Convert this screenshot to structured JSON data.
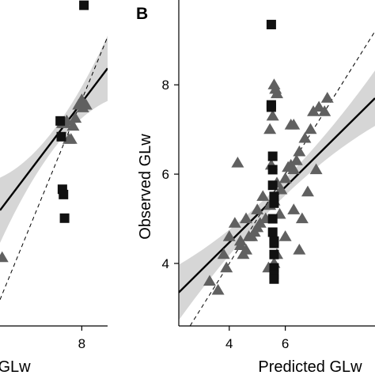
{
  "chart_data": [
    {
      "type": "scatter",
      "panel_label": "",
      "title": "",
      "xlabel": "GLw",
      "ylabel": "",
      "xlim": [
        4.2,
        9.2
      ],
      "ylim": [
        3.7,
        9.9
      ],
      "x_ticks": [
        8
      ],
      "y_ticks": [],
      "series": [
        {
          "marker": "triangle",
          "color": "#606060",
          "points": [
            [
              4.3,
              5.0
            ],
            [
              7.1,
              7.55
            ],
            [
              7.2,
              7.55
            ],
            [
              7.3,
              7.6
            ],
            [
              7.4,
              7.25
            ],
            [
              7.5,
              7.25
            ],
            [
              7.6,
              7.5
            ],
            [
              7.7,
              7.65
            ],
            [
              7.85,
              7.9
            ],
            [
              8.0,
              8.0
            ],
            [
              8.05,
              7.85
            ],
            [
              8.2,
              7.9
            ]
          ]
        },
        {
          "marker": "square",
          "color": "#111111",
          "points": [
            [
              7.0,
              7.6
            ],
            [
              7.05,
              7.3
            ],
            [
              7.1,
              6.3
            ],
            [
              7.15,
              6.2
            ],
            [
              7.2,
              5.75
            ],
            [
              8.1,
              9.8
            ]
          ]
        }
      ],
      "regression": {
        "x": [
          4.2,
          9.2
        ],
        "y": [
          5.9,
          8.6
        ]
      },
      "identity_line": {
        "x": [
          4.2,
          9.2
        ],
        "y": [
          4.2,
          9.2
        ]
      }
    },
    {
      "type": "scatter",
      "panel_label": "B",
      "title": "",
      "xlabel": "Predicted GLw",
      "ylabel": "Observed GLw",
      "xlim": [
        2.2,
        9.2
      ],
      "ylim": [
        2.6,
        9.9
      ],
      "x_ticks": [
        4,
        6
      ],
      "y_ticks": [
        4,
        6,
        8
      ],
      "series": [
        {
          "marker": "triangle",
          "color": "#606060",
          "points": [
            [
              3.3,
              3.6
            ],
            [
              3.6,
              3.4
            ],
            [
              3.8,
              4.2
            ],
            [
              3.9,
              3.9
            ],
            [
              4.0,
              4.6
            ],
            [
              4.2,
              4.9
            ],
            [
              4.3,
              6.25
            ],
            [
              4.4,
              4.4
            ],
            [
              4.5,
              4.2
            ],
            [
              4.6,
              4.3
            ],
            [
              4.7,
              4.6
            ],
            [
              4.9,
              4.7
            ],
            [
              5.0,
              4.8
            ],
            [
              5.1,
              4.9
            ],
            [
              5.3,
              5.0
            ],
            [
              5.45,
              5.3
            ],
            [
              5.6,
              5.4
            ],
            [
              5.7,
              5.8
            ],
            [
              5.85,
              5.65
            ],
            [
              6.0,
              5.9
            ],
            [
              6.1,
              6.15
            ],
            [
              6.2,
              6.2
            ],
            [
              6.3,
              6.1
            ],
            [
              6.4,
              6.3
            ],
            [
              6.5,
              6.5
            ],
            [
              6.6,
              5.0
            ],
            [
              6.7,
              6.8
            ],
            [
              6.9,
              7.0
            ],
            [
              7.0,
              7.4
            ],
            [
              7.1,
              6.1
            ],
            [
              7.2,
              7.5
            ],
            [
              7.4,
              7.4
            ],
            [
              7.5,
              7.7
            ],
            [
              6.0,
              4.6
            ],
            [
              6.5,
              4.3
            ],
            [
              6.3,
              5.2
            ],
            [
              5.8,
              5.1
            ],
            [
              6.8,
              5.6
            ],
            [
              5.5,
              6.2
            ],
            [
              5.65,
              7.9
            ],
            [
              5.7,
              7.8
            ],
            [
              5.6,
              8.0
            ],
            [
              5.45,
              7.0
            ],
            [
              5.55,
              7.3
            ],
            [
              6.2,
              7.1
            ],
            [
              6.3,
              7.1
            ],
            [
              4.4,
              4.5
            ],
            [
              5.0,
              5.2
            ],
            [
              4.8,
              4.6
            ],
            [
              5.2,
              5.5
            ],
            [
              4.6,
              5.0
            ],
            [
              5.6,
              4.0
            ],
            [
              5.4,
              3.9
            ],
            [
              5.7,
              4.2
            ]
          ]
        },
        {
          "marker": "square",
          "color": "#111111",
          "points": [
            [
              5.5,
              9.35
            ],
            [
              5.5,
              7.55
            ],
            [
              5.5,
              7.5
            ],
            [
              5.55,
              6.4
            ],
            [
              5.55,
              6.1
            ],
            [
              5.55,
              5.75
            ],
            [
              5.6,
              5.5
            ],
            [
              5.6,
              5.35
            ],
            [
              5.55,
              5.0
            ],
            [
              5.55,
              4.7
            ],
            [
              5.6,
              4.5
            ],
            [
              5.6,
              4.45
            ],
            [
              5.6,
              4.2
            ],
            [
              5.6,
              3.9
            ],
            [
              5.6,
              3.75
            ],
            [
              5.6,
              3.65
            ]
          ]
        }
      ],
      "regression": {
        "x": [
          2.2,
          9.2
        ],
        "y": [
          3.35,
          7.7
        ]
      },
      "identity_line": {
        "x": [
          2.2,
          9.2
        ],
        "y": [
          2.2,
          9.2
        ]
      }
    }
  ]
}
